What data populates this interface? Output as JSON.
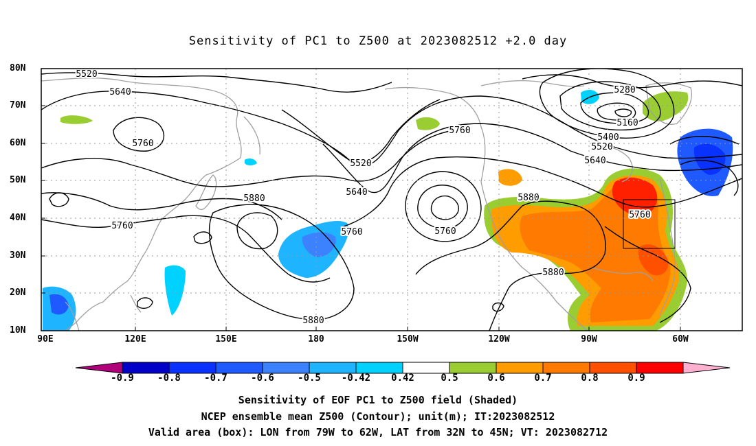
{
  "title": "Sensitivity of PC1 to Z500 at 2023082512 +2.0 day",
  "lat_labels": [
    "80N",
    "70N",
    "60N",
    "50N",
    "40N",
    "30N",
    "20N",
    "10N"
  ],
  "lon_labels": [
    "90E",
    "120E",
    "150E",
    "180",
    "150W",
    "120W",
    "90W",
    "60W"
  ],
  "contour_labels": [
    "5520",
    "5640",
    "5760",
    "5280",
    "5160",
    "5400",
    "5520",
    "5640",
    "5760",
    "5520",
    "5640",
    "5880",
    "5760",
    "5760",
    "5760",
    "5880",
    "5760",
    "5880",
    "5880"
  ],
  "colorbar": {
    "colors": [
      "#b0007a",
      "#0000c8",
      "#0a32ff",
      "#1e5aff",
      "#3c82ff",
      "#1fb4ff",
      "#00d2ff",
      "#ffffff",
      "#9acd32",
      "#ff9c00",
      "#ff7a00",
      "#ff5000",
      "#ff0000",
      "#ffb0d0"
    ],
    "labels": [
      "-0.9",
      "-0.8",
      "-0.7",
      "-0.6",
      "-0.5",
      "-0.42",
      "0.42",
      "0.5",
      "0.6",
      "0.7",
      "0.8",
      "0.9"
    ]
  },
  "captions": [
    "Sensitivity of EOF PC1 to Z500 field (Shaded)",
    "NCEP ensemble mean Z500 (Contour); unit(m); IT:2023082512",
    "Valid area (box): LON from 79W to 62W, LAT from 32N to 45N; VT: 2023082712"
  ],
  "valid_box": {
    "lon_min": -79,
    "lon_max": -62,
    "lat_min": 32,
    "lat_max": 45
  },
  "map_extent": {
    "lon_min": 90,
    "lon_max": 325,
    "lat_min": 10,
    "lat_max": 80
  }
}
